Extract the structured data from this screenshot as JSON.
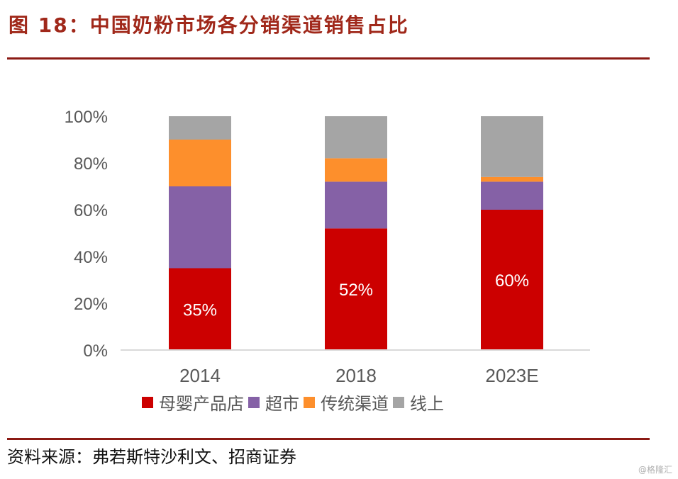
{
  "figure": {
    "title": "图 18：中国奶粉市场各分销渠道销售占比",
    "source": "资料来源：弗若斯特沙利文、招商证券",
    "watermark": "@格隆汇"
  },
  "chart_data": {
    "type": "bar",
    "stacked": true,
    "title": "中国奶粉市场各分销渠道销售占比",
    "xlabel": "",
    "ylabel": "",
    "categories": [
      "2014",
      "2018",
      "2023E"
    ],
    "ylim": [
      0,
      100
    ],
    "yticks": [
      "0%",
      "20%",
      "40%",
      "60%",
      "80%",
      "100%"
    ],
    "grid": false,
    "legend_position": "bottom",
    "series": [
      {
        "name": "母婴产品店",
        "color": "#cc0000",
        "values": [
          35,
          52,
          60
        ],
        "labels": [
          "35%",
          "52%",
          "60%"
        ]
      },
      {
        "name": "超市",
        "color": "#8561a6",
        "values": [
          35,
          20,
          12
        ]
      },
      {
        "name": "传统渠道",
        "color": "#fd8f2c",
        "values": [
          20,
          10,
          2
        ]
      },
      {
        "name": "线上",
        "color": "#a5a5a5",
        "values": [
          10,
          18,
          26
        ]
      }
    ]
  }
}
